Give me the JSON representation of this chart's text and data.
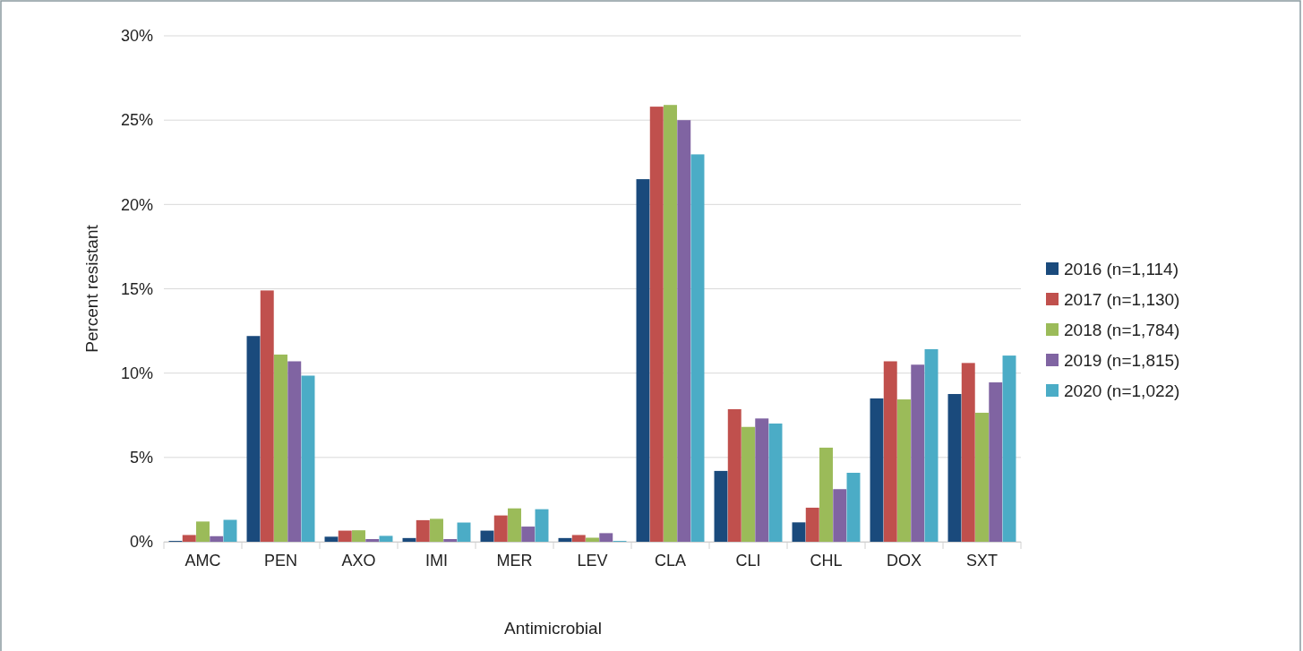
{
  "chart_data": {
    "type": "bar",
    "xlabel": "Antimicrobial",
    "ylabel": "Percent resistant",
    "categories": [
      "AMC",
      "PEN",
      "AXO",
      "IMI",
      "MER",
      "LEV",
      "CLA",
      "CLI",
      "CHL",
      "DOX",
      "SXT"
    ],
    "series": [
      {
        "name": "2016 (n=1,114)",
        "color": "#1a4a7c",
        "values": [
          0.05,
          12.2,
          0.3,
          0.22,
          0.66,
          0.22,
          21.5,
          4.2,
          1.15,
          8.5,
          8.76
        ]
      },
      {
        "name": "2017 (n=1,130)",
        "color": "#c0504d",
        "values": [
          0.4,
          14.9,
          0.66,
          1.28,
          1.56,
          0.4,
          25.8,
          7.86,
          2.02,
          10.7,
          10.6
        ]
      },
      {
        "name": "2018 (n=1,784)",
        "color": "#9bbb59",
        "values": [
          1.2,
          11.1,
          0.68,
          1.36,
          1.98,
          0.24,
          25.9,
          6.81,
          5.58,
          8.44,
          7.65
        ]
      },
      {
        "name": "2019 (n=1,815)",
        "color": "#8064a2",
        "values": [
          0.33,
          10.7,
          0.16,
          0.16,
          0.9,
          0.51,
          25.0,
          7.31,
          3.12,
          10.5,
          9.45
        ]
      },
      {
        "name": "2020 (n=1,022)",
        "color": "#4bacc6",
        "values": [
          1.3,
          9.85,
          0.35,
          1.14,
          1.93,
          0.05,
          22.97,
          7.01,
          4.09,
          11.42,
          11.04
        ]
      }
    ],
    "ylim": [
      0,
      30
    ],
    "yticks": [
      {
        "value": 0,
        "label": "0%"
      },
      {
        "value": 5,
        "label": "5%"
      },
      {
        "value": 10,
        "label": "10%"
      },
      {
        "value": 15,
        "label": "15%"
      },
      {
        "value": 20,
        "label": "20%"
      },
      {
        "value": 25,
        "label": "25%"
      },
      {
        "value": 30,
        "label": "30%"
      }
    ],
    "grid": "y",
    "legend": "right"
  }
}
